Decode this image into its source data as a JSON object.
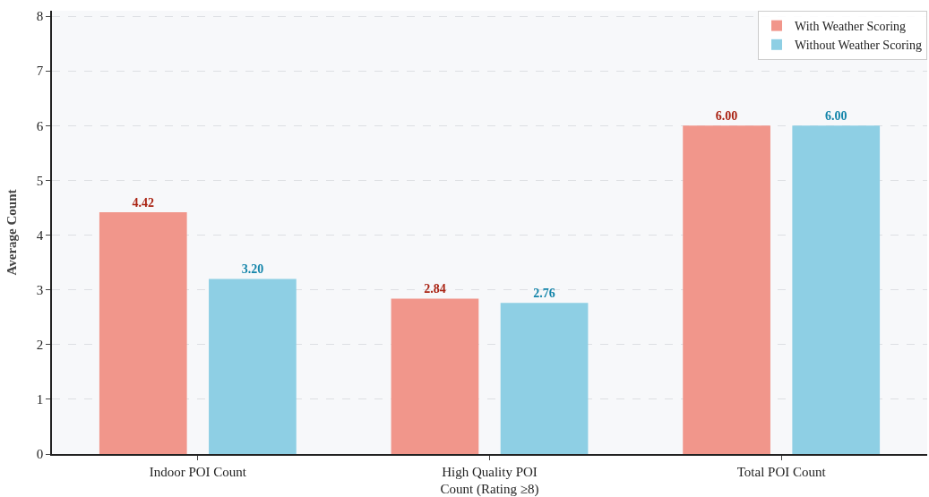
{
  "chart_data": {
    "type": "bar",
    "ylabel": "Average Count",
    "categories": [
      "Indoor POI Count",
      "High Quality POI\nCount (Rating ≥8)",
      "Total POI Count"
    ],
    "series": [
      {
        "name": "With Weather Scoring",
        "color": "#f1968b",
        "values": [
          4.42,
          2.84,
          6.0
        ],
        "value_labels": [
          "4.42",
          "2.84",
          "6.00"
        ]
      },
      {
        "name": "Without Weather Scoring",
        "color": "#8ecfe4",
        "values": [
          3.2,
          2.76,
          6.0
        ],
        "value_labels": [
          "3.20",
          "2.76",
          "6.00"
        ]
      }
    ],
    "ylim": [
      0,
      8.1
    ],
    "yticks": [
      0,
      1,
      2,
      3,
      4,
      5,
      6,
      7,
      8
    ],
    "grid": "y",
    "legend": "top right"
  }
}
